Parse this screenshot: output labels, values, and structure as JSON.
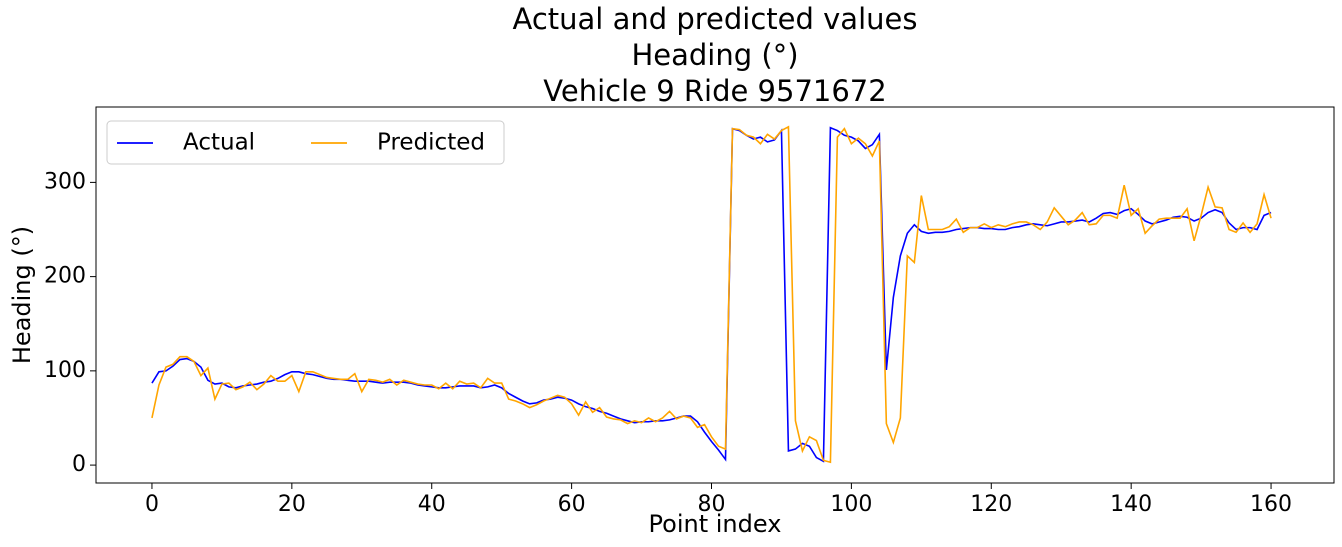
{
  "chart_data": {
    "type": "line",
    "title": [
      "Actual and predicted values",
      "Heading (°)",
      "Vehicle 9 Ride 9571672"
    ],
    "xlabel": "Point index",
    "ylabel": "Heading (°)",
    "x": [
      0,
      1,
      2,
      3,
      4,
      5,
      6,
      7,
      8,
      9,
      10,
      11,
      12,
      13,
      14,
      15,
      16,
      17,
      18,
      19,
      20,
      21,
      22,
      23,
      24,
      25,
      26,
      27,
      28,
      29,
      30,
      31,
      32,
      33,
      34,
      35,
      36,
      37,
      38,
      39,
      40,
      41,
      42,
      43,
      44,
      45,
      46,
      47,
      48,
      49,
      50,
      51,
      52,
      53,
      54,
      55,
      56,
      57,
      58,
      59,
      60,
      61,
      62,
      63,
      64,
      65,
      66,
      67,
      68,
      69,
      70,
      71,
      72,
      73,
      74,
      75,
      76,
      77,
      78,
      79,
      80,
      81,
      82,
      83,
      84,
      85,
      86,
      87,
      88,
      89,
      90,
      91,
      92,
      93,
      94,
      95,
      96,
      97,
      98,
      99,
      100,
      101,
      102,
      103,
      104,
      105,
      106,
      107,
      108,
      109,
      110,
      111,
      112,
      113,
      114,
      115,
      116,
      117,
      118,
      119,
      120,
      121,
      122,
      123,
      124,
      125,
      126,
      127,
      128,
      129,
      130,
      131,
      132,
      133,
      134,
      135,
      136,
      137,
      138,
      139,
      140,
      141,
      142,
      143,
      144,
      145,
      146,
      147,
      148,
      149,
      150,
      151,
      152,
      153,
      154,
      155,
      156,
      157,
      158,
      159,
      160
    ],
    "series": [
      {
        "name": "Actual",
        "color": "#0000ff",
        "values": [
          87,
          99,
          100,
          105,
          112,
          113,
          110,
          104,
          90,
          86,
          87,
          83,
          82,
          84,
          85,
          86,
          88,
          89,
          92,
          96,
          99,
          99,
          97,
          96,
          94,
          92,
          91,
          91,
          90,
          89,
          89,
          89,
          88,
          87,
          88,
          88,
          88,
          87,
          85,
          84,
          83,
          82,
          82,
          83,
          84,
          84,
          84,
          82,
          83,
          85,
          82,
          76,
          72,
          68,
          65,
          66,
          69,
          70,
          72,
          71,
          69,
          65,
          62,
          60,
          57,
          55,
          52,
          49,
          47,
          45,
          46,
          46,
          47,
          47,
          48,
          50,
          52,
          52,
          46,
          35,
          25,
          16,
          6,
          357,
          355,
          350,
          346,
          348,
          343,
          345,
          355,
          15,
          17,
          23,
          20,
          8,
          4,
          358,
          355,
          350,
          348,
          344,
          336,
          340,
          351,
          101,
          178,
          222,
          246,
          255,
          248,
          246,
          247,
          247,
          248,
          250,
          251,
          252,
          252,
          251,
          251,
          250,
          250,
          252,
          253,
          255,
          256,
          255,
          254,
          256,
          258,
          258,
          259,
          260,
          258,
          262,
          267,
          268,
          266,
          270,
          272,
          266,
          259,
          256,
          258,
          260,
          263,
          264,
          263,
          259,
          262,
          268,
          271,
          268,
          257,
          250,
          252,
          252,
          250,
          265,
          268
        ]
      },
      {
        "name": "Predicted",
        "color": "#ffa500",
        "values": [
          50,
          85,
          104,
          107,
          115,
          115,
          110,
          95,
          103,
          70,
          86,
          87,
          80,
          83,
          88,
          80,
          86,
          95,
          89,
          89,
          95,
          78,
          99,
          99,
          96,
          93,
          92,
          91,
          91,
          97,
          78,
          91,
          90,
          88,
          91,
          85,
          90,
          88,
          86,
          85,
          85,
          81,
          87,
          81,
          89,
          86,
          87,
          82,
          92,
          87,
          87,
          70,
          68,
          65,
          61,
          64,
          68,
          71,
          74,
          72,
          65,
          53,
          67,
          56,
          61,
          51,
          49,
          48,
          44,
          47,
          45,
          50,
          46,
          50,
          57,
          49,
          52,
          50,
          40,
          43,
          30,
          20,
          17,
          357,
          356,
          350,
          348,
          341,
          351,
          346,
          355,
          359,
          47,
          15,
          30,
          26,
          5,
          3,
          348,
          357,
          341,
          347,
          341,
          328,
          344,
          44,
          24,
          50,
          222,
          215,
          286,
          250,
          250,
          250,
          253,
          261,
          247,
          252,
          252,
          256,
          252,
          255,
          253,
          256,
          258,
          258,
          255,
          250,
          258,
          273,
          264,
          255,
          260,
          268,
          255,
          256,
          265,
          265,
          262,
          297,
          265,
          272,
          246,
          254,
          261,
          262,
          262,
          262,
          272,
          238,
          265,
          295,
          274,
          273,
          250,
          247,
          257,
          247,
          256,
          287,
          262
        ]
      }
    ],
    "xlim": [
      -8,
      169
    ],
    "ylim": [
      -19,
      380
    ],
    "xticks": [
      0,
      20,
      40,
      60,
      80,
      100,
      120,
      140,
      160
    ],
    "yticks": [
      0,
      100,
      200,
      300
    ],
    "legend": "upper left",
    "grid": false
  }
}
